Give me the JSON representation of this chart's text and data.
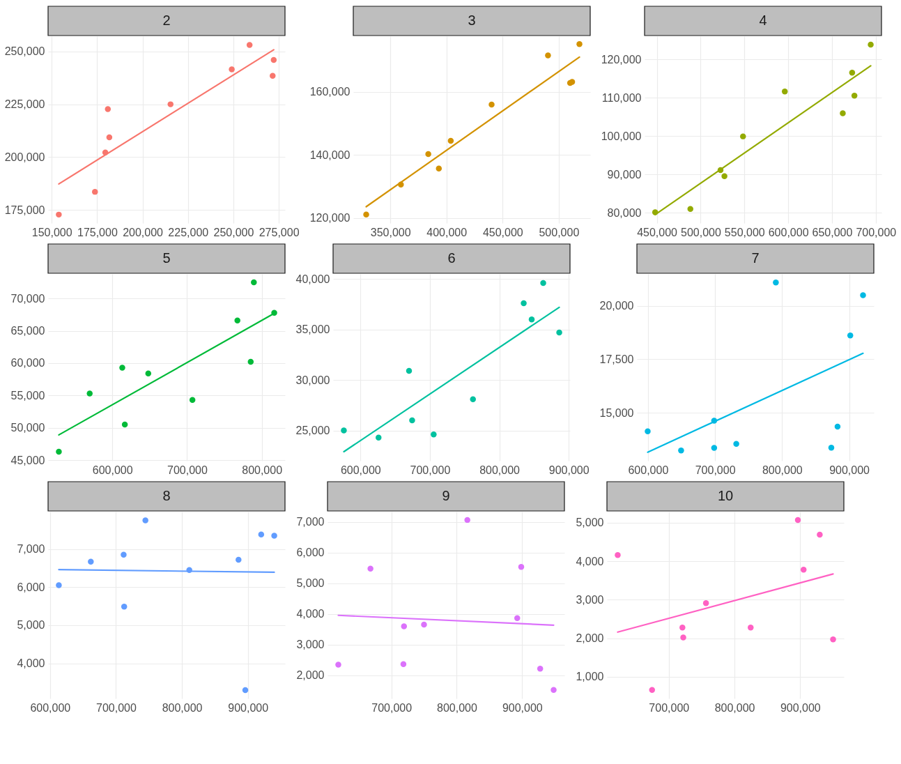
{
  "chart_data": [
    {
      "type": "scatter",
      "title": "2",
      "xlim": [
        148000,
        278400
      ],
      "ylim": [
        168800,
        257200
      ],
      "xticks": [
        {
          "value": 150000,
          "label": "150,000"
        },
        {
          "value": 175000,
          "label": "175,000"
        },
        {
          "value": 200000,
          "label": "200,000"
        },
        {
          "value": 225000,
          "label": "225,000"
        },
        {
          "value": 250000,
          "label": "250,000"
        },
        {
          "value": 275000,
          "label": "275,000"
        }
      ],
      "yticks": [
        {
          "value": 175000,
          "label": "175,000"
        },
        {
          "value": 200000,
          "label": "200,000"
        },
        {
          "value": 225000,
          "label": "225,000"
        },
        {
          "value": 250000,
          "label": "250,000"
        }
      ],
      "grid": true,
      "series": [
        {
          "marker": "circle",
          "color": "#f8766d",
          "x": [
            153900,
            173800,
            179500,
            180900,
            181700,
            215400,
            249100,
            258900,
            272200,
            271600
          ],
          "values": [
            172800,
            183600,
            202200,
            222700,
            209400,
            225000,
            241500,
            253100,
            246000,
            238500
          ]
        },
        {
          "type": "line",
          "color": "#f8766d",
          "x": [
            153900,
            272200
          ],
          "values": [
            187300,
            250800
          ]
        }
      ]
    },
    {
      "type": "scatter",
      "title": "3",
      "xlim": [
        317000,
        528000
      ],
      "ylim": [
        118400,
        177700
      ],
      "xticks": [
        {
          "value": 350000,
          "label": "350,000"
        },
        {
          "value": 400000,
          "label": "400,000"
        },
        {
          "value": 450000,
          "label": "450,000"
        },
        {
          "value": 500000,
          "label": "500,000"
        }
      ],
      "yticks": [
        {
          "value": 120000,
          "label": "120,000"
        },
        {
          "value": 140000,
          "label": "140,000"
        },
        {
          "value": 160000,
          "label": "160,000"
        }
      ],
      "grid": true,
      "series": [
        {
          "marker": "circle",
          "color": "#d39200",
          "x": [
            328500,
            359400,
            383800,
            393200,
            403800,
            440200,
            490400,
            510100,
            511900,
            518400
          ],
          "values": [
            121100,
            130600,
            140300,
            135700,
            144500,
            156000,
            171600,
            162900,
            163200,
            175200
          ]
        },
        {
          "type": "line",
          "color": "#d39200",
          "x": [
            328500,
            518400
          ],
          "values": [
            123600,
            171100
          ]
        }
      ]
    },
    {
      "type": "scatter",
      "title": "4",
      "xlim": [
        436000,
        706500
      ],
      "ylim": [
        77300,
        126000
      ],
      "xticks": [
        {
          "value": 450000,
          "label": "450,000"
        },
        {
          "value": 500000,
          "label": "500,000"
        },
        {
          "value": 550000,
          "label": "550,000"
        },
        {
          "value": 600000,
          "label": "600,000"
        },
        {
          "value": 650000,
          "label": "650,000"
        },
        {
          "value": 700000,
          "label": "700,000"
        }
      ],
      "yticks": [
        {
          "value": 80000,
          "label": "80,000"
        },
        {
          "value": 90000,
          "label": "90,000"
        },
        {
          "value": 100000,
          "label": "100,000"
        },
        {
          "value": 110000,
          "label": "110,000"
        },
        {
          "value": 120000,
          "label": "120,000"
        }
      ],
      "grid": true,
      "series": [
        {
          "marker": "circle",
          "color": "#93aa00",
          "x": [
            448100,
            488300,
            522700,
            527200,
            548400,
            596100,
            662300,
            673000,
            675600,
            694200
          ],
          "values": [
            80100,
            81000,
            91100,
            89500,
            99900,
            111600,
            105900,
            116500,
            110500,
            123800
          ]
        },
        {
          "type": "line",
          "color": "#93aa00",
          "x": [
            448100,
            694200
          ],
          "values": [
            79500,
            118300
          ]
        }
      ]
    },
    {
      "type": "scatter",
      "title": "5",
      "xlim": [
        514000,
        831100
      ],
      "ylim": [
        44900,
        73800
      ],
      "xticks": [
        {
          "value": 600000,
          "label": "600,000"
        },
        {
          "value": 700000,
          "label": "700,000"
        },
        {
          "value": 800000,
          "label": "800,000"
        }
      ],
      "yticks": [
        {
          "value": 45000,
          "label": "45,000"
        },
        {
          "value": 50000,
          "label": "50,000"
        },
        {
          "value": 55000,
          "label": "55,000"
        },
        {
          "value": 60000,
          "label": "60,000"
        },
        {
          "value": 65000,
          "label": "65,000"
        },
        {
          "value": 70000,
          "label": "70,000"
        }
      ],
      "grid": true,
      "series": [
        {
          "marker": "circle",
          "color": "#00ba38",
          "x": [
            528400,
            569700,
            613300,
            616700,
            648100,
            707200,
            767400,
            785200,
            789400,
            816700
          ],
          "values": [
            46300,
            55300,
            59300,
            50500,
            58400,
            54300,
            66600,
            60200,
            72500,
            67800
          ]
        },
        {
          "type": "line",
          "color": "#00ba38",
          "x": [
            528400,
            816700
          ],
          "values": [
            48900,
            67700
          ]
        }
      ]
    },
    {
      "type": "scatter",
      "title": "6",
      "xlim": [
        560500,
        901800
      ],
      "ylim": [
        22000,
        40500
      ],
      "xticks": [
        {
          "value": 600000,
          "label": "600,000"
        },
        {
          "value": 700000,
          "label": "700,000"
        },
        {
          "value": 800000,
          "label": "800,000"
        },
        {
          "value": 900000,
          "label": "900,000"
        }
      ],
      "yticks": [
        {
          "value": 25000,
          "label": "25,000"
        },
        {
          "value": 30000,
          "label": "30,000"
        },
        {
          "value": 35000,
          "label": "35,000"
        },
        {
          "value": 40000,
          "label": "40,000"
        }
      ],
      "grid": true,
      "series": [
        {
          "marker": "circle",
          "color": "#00c19f",
          "x": [
            576000,
            626000,
            669900,
            674400,
            705400,
            762000,
            835100,
            846600,
            863200,
            886300
          ],
          "values": [
            25000,
            24300,
            30900,
            26000,
            24600,
            28100,
            37600,
            36000,
            39600,
            34700
          ]
        },
        {
          "type": "line",
          "color": "#00c19f",
          "x": [
            576000,
            886300
          ],
          "values": [
            22900,
            37200
          ]
        }
      ]
    },
    {
      "type": "scatter",
      "title": "7",
      "xlim": [
        583500,
        936800
      ],
      "ylim": [
        12770,
        21480
      ],
      "xticks": [
        {
          "value": 600000,
          "label": "600,000"
        },
        {
          "value": 700000,
          "label": "700,000"
        },
        {
          "value": 800000,
          "label": "800,000"
        },
        {
          "value": 900000,
          "label": "900,000"
        }
      ],
      "yticks": [
        {
          "value": 15000,
          "label": "15,000"
        },
        {
          "value": 17500,
          "label": "17,500"
        },
        {
          "value": 20000,
          "label": "20,000"
        }
      ],
      "grid": true,
      "series": [
        {
          "marker": "circle",
          "color": "#00b9e3",
          "x": [
            599600,
            649400,
            698700,
            698700,
            731700,
            790700,
            873400,
            882700,
            901700,
            920700
          ],
          "values": [
            14140,
            13250,
            14640,
            13370,
            13560,
            21080,
            13380,
            14360,
            18610,
            20490
          ]
        },
        {
          "type": "line",
          "color": "#00b9e3",
          "x": [
            599600,
            920700
          ],
          "values": [
            13170,
            17780
          ]
        }
      ]
    },
    {
      "type": "scatter",
      "title": "8",
      "xlim": [
        597000,
        956300
      ],
      "ylim": [
        3080,
        7980
      ],
      "xticks": [
        {
          "value": 600000,
          "label": "600,000"
        },
        {
          "value": 700000,
          "label": "700,000"
        },
        {
          "value": 800000,
          "label": "800,000"
        },
        {
          "value": 900000,
          "label": "900,000"
        }
      ],
      "yticks": [
        {
          "value": 4000,
          "label": "4,000"
        },
        {
          "value": 5000,
          "label": "5,000"
        },
        {
          "value": 6000,
          "label": "6,000"
        },
        {
          "value": 7000,
          "label": "7,000"
        }
      ],
      "grid": true,
      "series": [
        {
          "marker": "circle",
          "color": "#619cff",
          "x": [
            613300,
            661800,
            711600,
            712400,
            744600,
            811200,
            885800,
            896100,
            920200,
            940000
          ],
          "values": [
            6050,
            6670,
            6850,
            5490,
            7750,
            6450,
            6720,
            3300,
            7380,
            7350
          ]
        },
        {
          "type": "line",
          "color": "#619cff",
          "x": [
            613300,
            940000
          ],
          "values": [
            6460,
            6390
          ]
        }
      ]
    },
    {
      "type": "scatter",
      "title": "9",
      "xlim": [
        602300,
        964700
      ],
      "ylim": [
        1250,
        7340
      ],
      "xticks": [
        {
          "value": 700000,
          "label": "700,000"
        },
        {
          "value": 800000,
          "label": "800,000"
        },
        {
          "value": 900000,
          "label": "900,000"
        }
      ],
      "yticks": [
        {
          "value": 2000,
          "label": "2,000"
        },
        {
          "value": 3000,
          "label": "3,000"
        },
        {
          "value": 4000,
          "label": "4,000"
        },
        {
          "value": 5000,
          "label": "5,000"
        },
        {
          "value": 6000,
          "label": "6,000"
        },
        {
          "value": 7000,
          "label": "7,000"
        }
      ],
      "grid": true,
      "series": [
        {
          "marker": "circle",
          "color": "#db72fb",
          "x": [
            618800,
            668000,
            719300,
            718400,
            749900,
            816200,
            898600,
            892500,
            927600,
            948200
          ],
          "values": [
            2350,
            5480,
            3600,
            2370,
            3660,
            7070,
            5540,
            3870,
            2220,
            1530
          ]
        },
        {
          "type": "line",
          "color": "#db72fb",
          "x": [
            618800,
            948200
          ],
          "values": [
            3960,
            3640
          ]
        }
      ]
    },
    {
      "type": "scatter",
      "title": "10",
      "xlim": [
        605800,
        966500
      ],
      "ylim": [
        437,
        5287
      ],
      "xticks": [
        {
          "value": 700000,
          "label": "700,000"
        },
        {
          "value": 800000,
          "label": "800,000"
        },
        {
          "value": 900000,
          "label": "900,000"
        }
      ],
      "yticks": [
        {
          "value": 1000,
          "label": "1,000"
        },
        {
          "value": 2000,
          "label": "2,000"
        },
        {
          "value": 3000,
          "label": "3,000"
        },
        {
          "value": 4000,
          "label": "4,000"
        },
        {
          "value": 5000,
          "label": "5,000"
        }
      ],
      "grid": true,
      "series": [
        {
          "marker": "circle",
          "color": "#ff61c3",
          "x": [
            622200,
            674500,
            720700,
            722000,
            756600,
            824600,
            896500,
            905200,
            929800,
            950100
          ],
          "values": [
            4160,
            660,
            2280,
            2020,
            2910,
            2280,
            5070,
            3780,
            4690,
            1970
          ]
        },
        {
          "type": "line",
          "color": "#ff61c3",
          "x": [
            622200,
            950100
          ],
          "values": [
            2160,
            3670
          ]
        }
      ]
    }
  ]
}
